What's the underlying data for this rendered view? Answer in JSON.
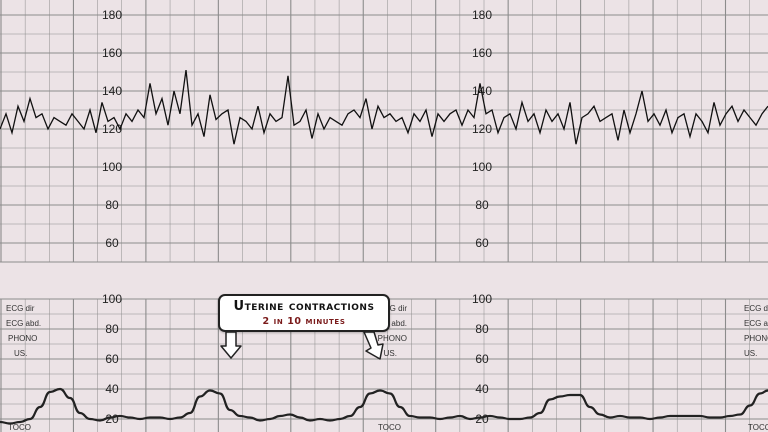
{
  "callout": {
    "title": "Uterine contractions",
    "subtitle": "2 in 10 minutes"
  },
  "channel_labels": {
    "ecg_dir": "ECG dir",
    "ecg_abd": "ECG abd.",
    "phono": "PHONO",
    "us": "US.",
    "toco": "TOCO"
  },
  "colors": {
    "paper": "#ece3e6",
    "grid": "#8c8c8c",
    "trace": "#111111",
    "callout_subtitle": "#7a1a1a"
  },
  "chart_data": [
    {
      "type": "line",
      "name": "fetal-heart-rate",
      "ylim": [
        50,
        190
      ],
      "yticks": [
        60,
        80,
        100,
        120,
        140,
        160,
        180
      ],
      "x_range": [
        0,
        768
      ],
      "grid": true,
      "x": [
        0,
        6,
        12,
        18,
        24,
        30,
        36,
        42,
        48,
        54,
        60,
        66,
        72,
        78,
        84,
        90,
        96,
        102,
        108,
        114,
        120,
        126,
        132,
        138,
        144,
        150,
        156,
        162,
        168,
        174,
        180,
        186,
        192,
        198,
        204,
        210,
        216,
        222,
        228,
        234,
        240,
        246,
        252,
        258,
        264,
        270,
        276,
        282,
        288,
        294,
        300,
        306,
        312,
        318,
        324,
        330,
        336,
        342,
        348,
        354,
        360,
        366,
        372,
        378,
        384,
        390,
        396,
        402,
        408,
        414,
        420,
        426,
        432,
        438,
        444,
        450,
        456,
        462,
        468,
        474,
        480,
        486,
        492,
        498,
        504,
        510,
        516,
        522,
        528,
        534,
        540,
        546,
        552,
        558,
        564,
        570,
        576,
        582,
        588,
        594,
        600,
        606,
        612,
        618,
        624,
        630,
        636,
        642,
        648,
        654,
        660,
        666,
        672,
        678,
        684,
        690,
        696,
        702,
        708,
        714,
        720,
        726,
        732,
        738,
        744,
        750,
        756,
        762,
        768
      ],
      "values": [
        120,
        128,
        118,
        132,
        124,
        136,
        126,
        128,
        120,
        126,
        124,
        122,
        128,
        124,
        120,
        130,
        118,
        134,
        124,
        126,
        120,
        128,
        124,
        130,
        126,
        144,
        128,
        136,
        122,
        140,
        128,
        151,
        122,
        128,
        116,
        138,
        125,
        128,
        130,
        112,
        126,
        124,
        120,
        132,
        118,
        128,
        124,
        126,
        148,
        122,
        124,
        130,
        115,
        128,
        120,
        126,
        124,
        122,
        128,
        130,
        126,
        136,
        120,
        132,
        126,
        128,
        124,
        126,
        118,
        128,
        124,
        130,
        116,
        128,
        124,
        128,
        130,
        122,
        130,
        126,
        144,
        128,
        130,
        118,
        126,
        128,
        120,
        134,
        124,
        128,
        118,
        130,
        124,
        128,
        120,
        134,
        112,
        126,
        128,
        132,
        124,
        126,
        128,
        114,
        130,
        118,
        128,
        140,
        124,
        128,
        122,
        130,
        118,
        126,
        128,
        116,
        128,
        124,
        118,
        134,
        122,
        128,
        132,
        124,
        130,
        126,
        122,
        128,
        132
      ]
    },
    {
      "type": "line",
      "name": "uterine-activity",
      "ylim": [
        0,
        100
      ],
      "yticks": [
        20,
        40,
        60,
        80,
        100
      ],
      "x_range": [
        0,
        768
      ],
      "grid": true,
      "x": [
        0,
        10,
        20,
        30,
        40,
        50,
        60,
        70,
        80,
        90,
        100,
        110,
        120,
        130,
        140,
        150,
        160,
        170,
        180,
        190,
        200,
        210,
        220,
        230,
        240,
        250,
        260,
        270,
        280,
        290,
        300,
        310,
        320,
        330,
        340,
        350,
        360,
        370,
        380,
        390,
        400,
        410,
        420,
        430,
        440,
        450,
        460,
        470,
        480,
        490,
        500,
        510,
        520,
        530,
        540,
        550,
        560,
        570,
        580,
        590,
        600,
        610,
        620,
        630,
        640,
        650,
        660,
        670,
        680,
        690,
        700,
        710,
        720,
        730,
        740,
        750,
        760,
        768
      ],
      "values": [
        18,
        17,
        18,
        20,
        28,
        38,
        40,
        34,
        24,
        20,
        19,
        21,
        22,
        21,
        20,
        21,
        21,
        20,
        21,
        24,
        35,
        39,
        37,
        26,
        22,
        21,
        19,
        20,
        22,
        23,
        21,
        19,
        20,
        19,
        20,
        22,
        28,
        37,
        39,
        37,
        28,
        22,
        21,
        21,
        20,
        21,
        22,
        20,
        21,
        22,
        21,
        20,
        20,
        21,
        24,
        33,
        35,
        36,
        36,
        28,
        23,
        21,
        22,
        21,
        21,
        20,
        21,
        22,
        22,
        22,
        22,
        21,
        21,
        22,
        23,
        29,
        37,
        39
      ]
    }
  ]
}
